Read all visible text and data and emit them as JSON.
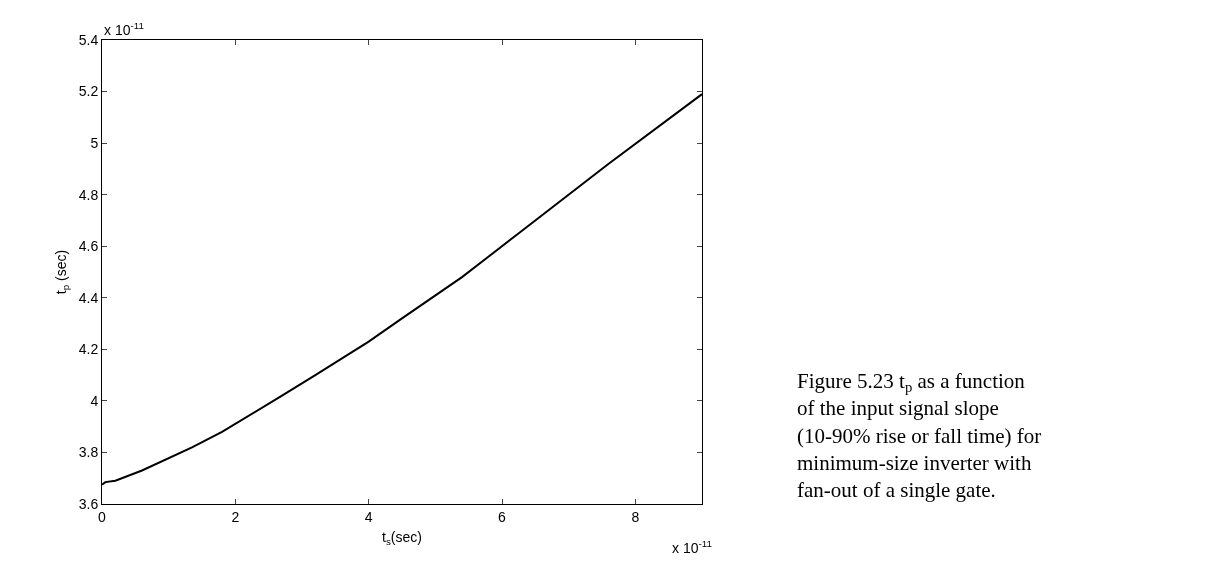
{
  "chart_data": {
    "type": "line",
    "xlabel": "t$_{s}$(sec)",
    "ylabel": "t$_{p}$ (sec)",
    "x": [
      0,
      0.05,
      0.2,
      0.6,
      1.35,
      1.8,
      2.7,
      3.2,
      4,
      4.5,
      5.4,
      5.8,
      6.3,
      7.6,
      9
    ],
    "series": [
      {
        "color": "#000000",
        "values": [
          3.675,
          3.685,
          3.69,
          3.73,
          3.82,
          3.88,
          4.02,
          4.1,
          4.23,
          4.32,
          4.48,
          4.56,
          4.66,
          4.92,
          5.19
        ]
      }
    ],
    "xlim": [
      0,
      9
    ],
    "xticks": [
      0,
      2,
      4,
      6,
      8
    ],
    "ylim": [
      3.6,
      5.4
    ],
    "yticks": [
      3.6,
      3.8,
      4,
      4.2,
      4.4,
      4.6,
      4.8,
      5,
      5.2,
      5.4
    ],
    "marker": "none",
    "line_style": "solid",
    "annotations": [
      "x 10$^{-11}$",
      "x 10$^{-11}$",
      "Figure 5.23 t$_{p}$ as a function of the input signal slope (10-90% rise or fall time) for minimum-size inverter with fan-out of a single gate."
    ]
  }
}
